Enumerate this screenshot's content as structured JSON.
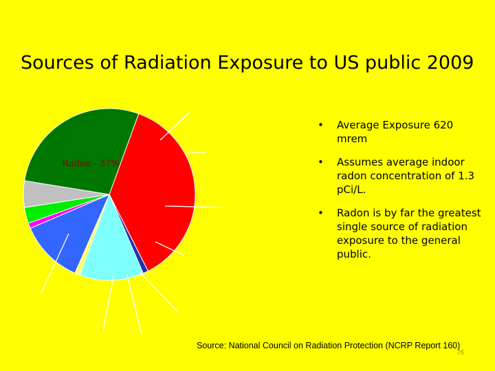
{
  "slide": {
    "title": "Sources of Radiation Exposure to US public 2009",
    "source": "Source: National Council on Radiation Protection (NCRP Report 160)",
    "page_number": "76"
  },
  "bullets": [
    {
      "marker": "•",
      "text": "Average Exposure 620 mrem"
    },
    {
      "marker": "•",
      "text": "Assumes average indoor radon concentration of 1.3 pCi/L."
    },
    {
      "marker": "•",
      "text": "Radon is by far the greatest single source of radiation exposure to the general public."
    }
  ],
  "chart_data": {
    "type": "pie",
    "data_labels": [
      "Radon - 37%"
    ],
    "slices": [
      {
        "value": 37,
        "color": "#ff0000",
        "label": "Radon - 37%"
      },
      {
        "value": 1,
        "color": "#2233aa"
      },
      {
        "value": 12,
        "color": "#80ffff"
      },
      {
        "value": 1,
        "color": "#ffff66"
      },
      {
        "value": 12,
        "color": "#3366ff"
      },
      {
        "value": 1,
        "color": "#ff00ff"
      },
      {
        "value": 3,
        "color": "#00ee00"
      },
      {
        "value": 5,
        "color": "#c0c0c0"
      },
      {
        "value": 28,
        "color": "#007700"
      }
    ],
    "start_angle_deg": -70,
    "slice_outline_color": "#ffffff"
  }
}
